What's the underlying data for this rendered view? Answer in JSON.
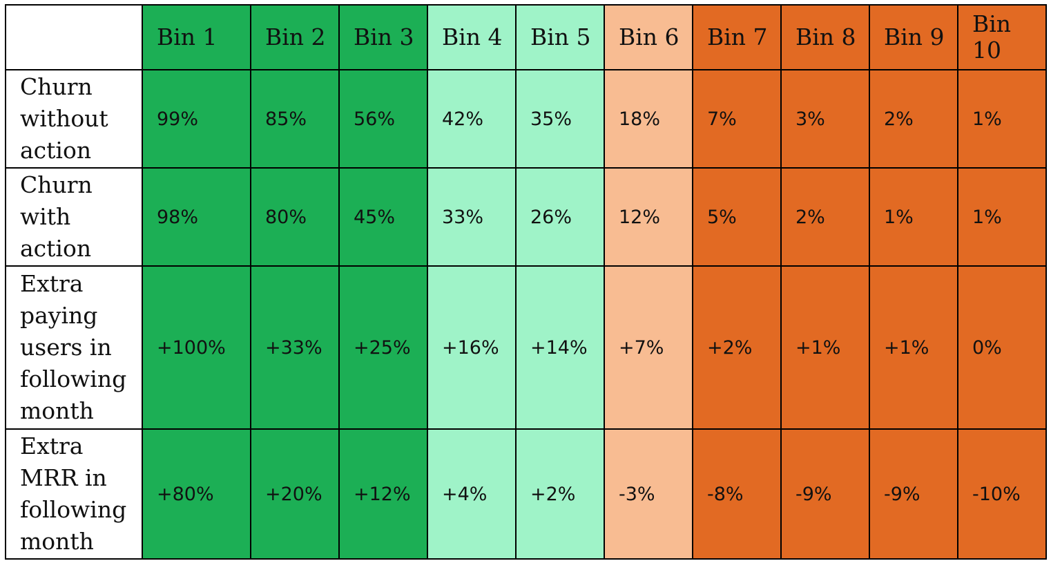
{
  "table": {
    "corner": "",
    "columns": [
      {
        "label": "Bin 1",
        "fill": "#1caf55"
      },
      {
        "label": "Bin 2",
        "fill": "#1caf55"
      },
      {
        "label": "Bin 3",
        "fill": "#1caf55"
      },
      {
        "label": "Bin 4",
        "fill": "#9ff3c8"
      },
      {
        "label": "Bin 5",
        "fill": "#9ff3c8"
      },
      {
        "label": "Bin 6",
        "fill": "#f8bc92"
      },
      {
        "label": "Bin 7",
        "fill": "#e26a23"
      },
      {
        "label": "Bin 8",
        "fill": "#e26a23"
      },
      {
        "label": "Bin 9",
        "fill": "#e26a23"
      },
      {
        "label": "Bin 10",
        "fill": "#e26a23"
      }
    ],
    "rows": [
      {
        "label": "Churn without action",
        "cells": [
          "99%",
          "85%",
          "56%",
          "42%",
          "35%",
          "18%",
          "7%",
          "3%",
          "2%",
          "1%"
        ]
      },
      {
        "label": "Churn with action",
        "cells": [
          "98%",
          "80%",
          "45%",
          "33%",
          "26%",
          "12%",
          "5%",
          "2%",
          "1%",
          "1%"
        ]
      },
      {
        "label": "Extra paying users in following month",
        "cells": [
          "+100%",
          "+33%",
          "+25%",
          "+16%",
          "+14%",
          "+7%",
          "+2%",
          "+1%",
          "+1%",
          "0%"
        ]
      },
      {
        "label": "Extra MRR in following month",
        "cells": [
          "+80%",
          "+20%",
          "+12%",
          "+4%",
          "+2%",
          "-3%",
          "-8%",
          "-9%",
          "-9%",
          "-10%"
        ]
      }
    ]
  }
}
